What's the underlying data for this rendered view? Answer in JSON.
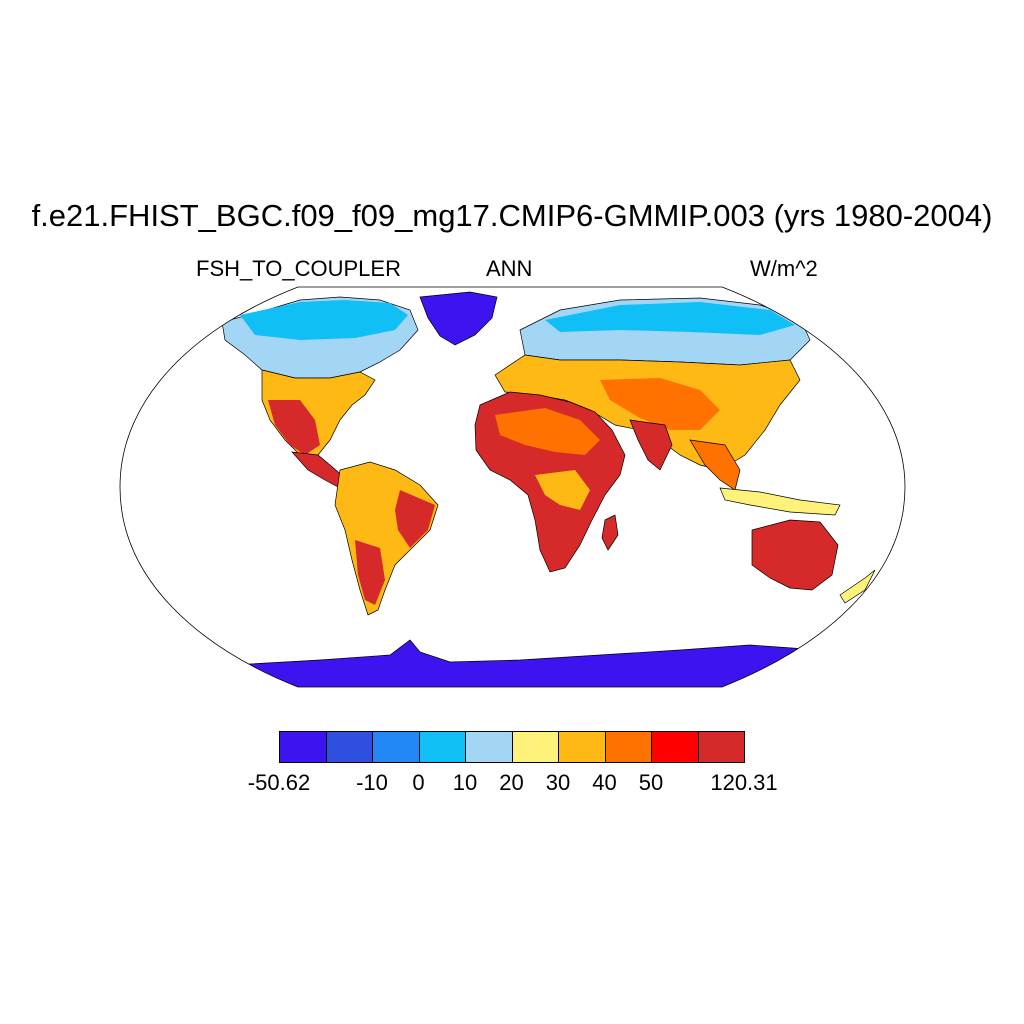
{
  "title": "f.e21.FHIST_BGC.f09_f09_mg17.CMIP6-GMMIP.003 (yrs 1980-2004)",
  "variable": "FSH_TO_COUPLER",
  "season": "ANN",
  "units": "W/m^2",
  "colorbar": {
    "colors": [
      "#3d13f0",
      "#2f4fe0",
      "#2288f5",
      "#11bff7",
      "#a3d6f5",
      "#fff27a",
      "#ffb914",
      "#ff7200",
      "#ff0000",
      "#d62a2a"
    ],
    "labels": [
      "-50.62",
      "-10",
      "0",
      "10",
      "20",
      "30",
      "40",
      "50",
      "120.31"
    ],
    "label_boundaries": [
      0,
      2,
      3,
      4,
      5,
      6,
      7,
      8,
      10
    ]
  },
  "colors": {
    "land_outline": "#000000",
    "map_border": "#000000"
  }
}
